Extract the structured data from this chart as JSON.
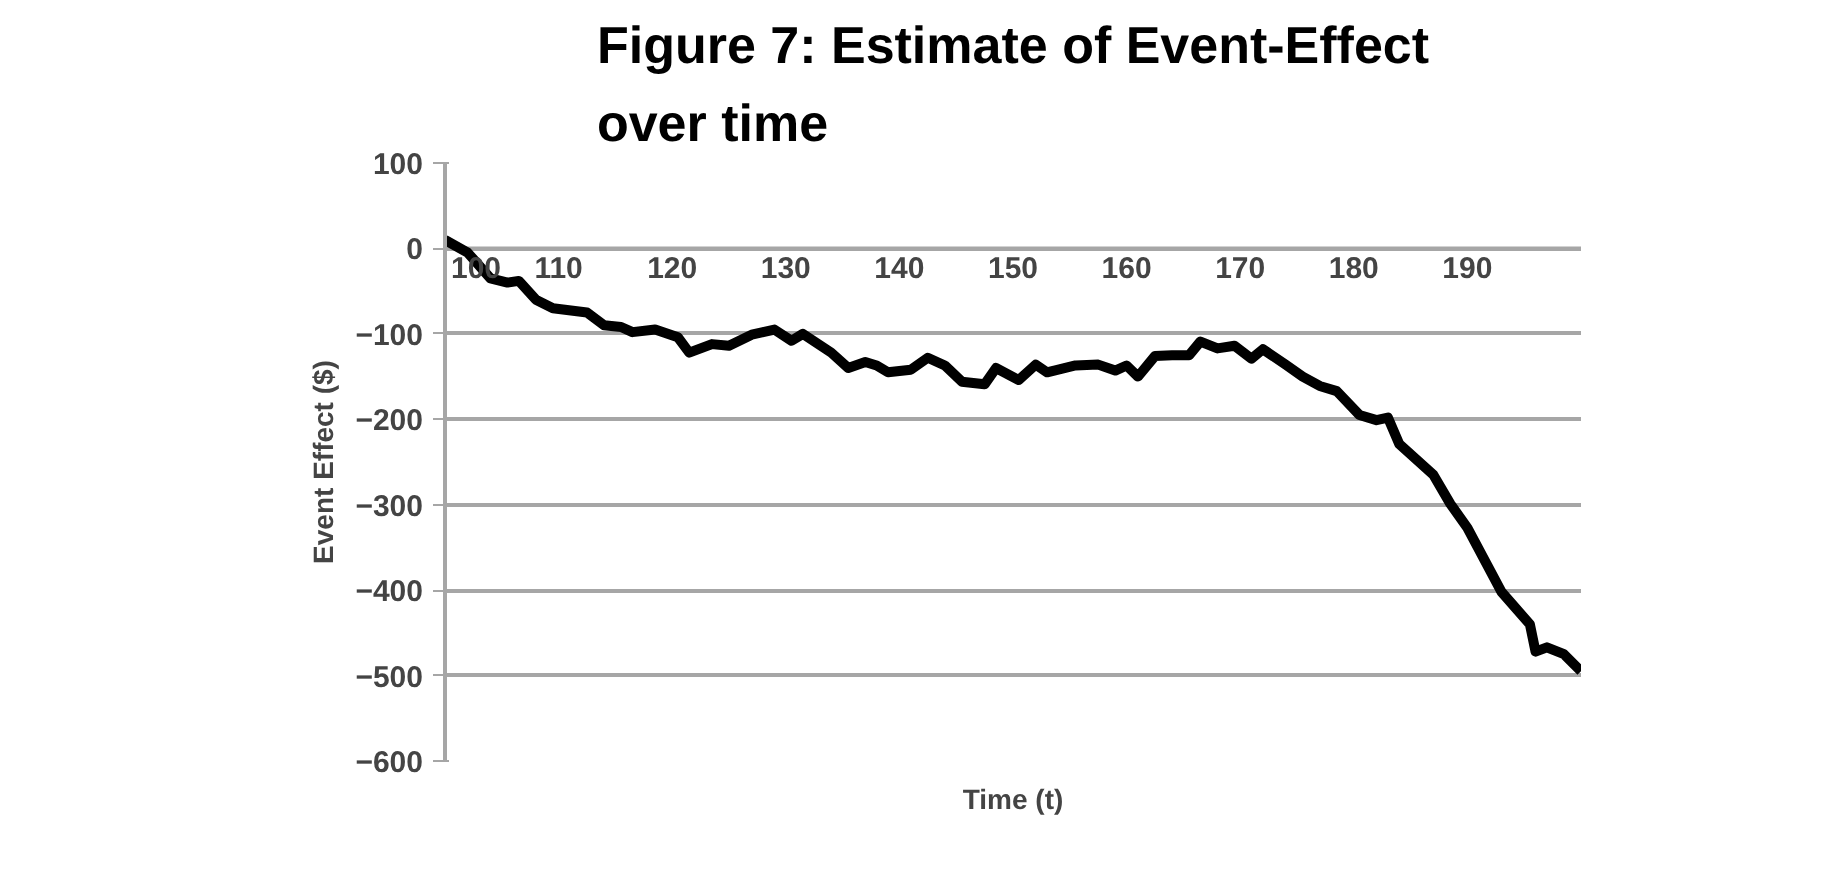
{
  "chart_data": {
    "type": "line",
    "title": "Figure 7: Estimate of Event-Effect over time",
    "xlabel": "Time (t)",
    "ylabel": "Event Effect ($)",
    "x": [
      100,
      102,
      104,
      105.5,
      106.5,
      108,
      109.5,
      112.5,
      114,
      115.5,
      116.5,
      118.5,
      120.5,
      121.5,
      123.5,
      125,
      127,
      128,
      129,
      130.5,
      131.5,
      134,
      135.5,
      137,
      138,
      139,
      141,
      142.5,
      144,
      145.5,
      147.5,
      148.5,
      150.5,
      152,
      153,
      155.5,
      157.5,
      159,
      160,
      161,
      162.5,
      164,
      165.5,
      166.5,
      168,
      169.5,
      171,
      172,
      174,
      175.5,
      177,
      178.5,
      180.5,
      182,
      183,
      184,
      187,
      188.5,
      190,
      193,
      195.5,
      196,
      197,
      198.5,
      200
    ],
    "series": [
      {
        "color": "#000000",
        "values": [
          10,
          -5,
          -35,
          -40,
          -38,
          -60,
          -70,
          -75,
          -90,
          -92,
          -98,
          -95,
          -104,
          -122,
          -112,
          -114,
          -101,
          -98,
          -95,
          -108,
          -100,
          -122,
          -140,
          -133,
          -137,
          -145,
          -142,
          -128,
          -137,
          -156,
          -159,
          -140,
          -154,
          -136,
          -145,
          -137,
          -136,
          -143,
          -137,
          -150,
          -126,
          -125,
          -125,
          -109,
          -117,
          -114,
          -129,
          -118,
          -136,
          -150,
          -161,
          -167,
          -195,
          -201,
          -198,
          -229,
          -265,
          -299,
          -327,
          -402,
          -440,
          -472,
          -467,
          -475,
          -495
        ]
      }
    ],
    "xlim": [
      100,
      200
    ],
    "xticks": [
      100,
      110,
      120,
      130,
      140,
      150,
      160,
      170,
      180,
      190
    ],
    "ylim": [
      -600,
      100
    ],
    "yticks": [
      -600,
      -500,
      -400,
      -300,
      -200,
      -100,
      0,
      100
    ],
    "grid": "y",
    "marker": "none",
    "line_style": "solid"
  }
}
